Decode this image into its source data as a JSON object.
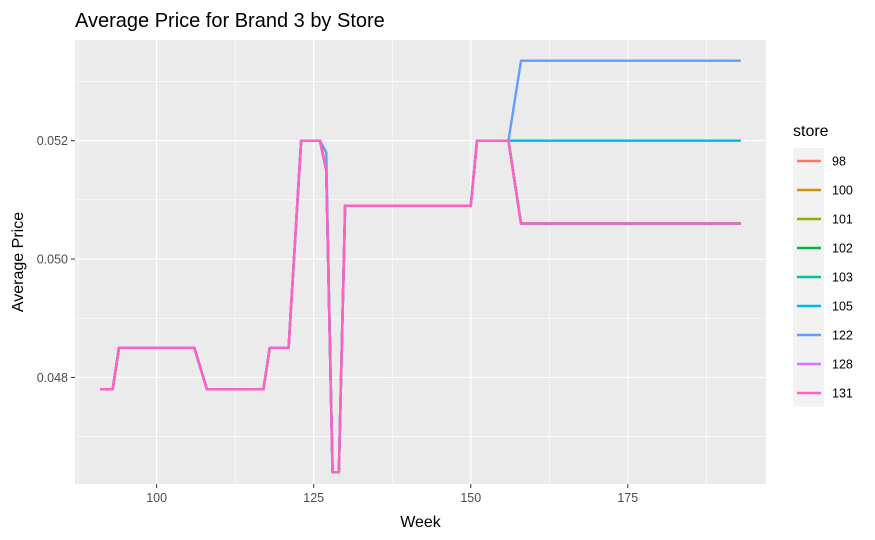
{
  "chart_data": {
    "type": "line",
    "title": "Average Price for Brand 3 by Store",
    "xlabel": "Week",
    "ylabel": "Average Price",
    "xlim": [
      87,
      197
    ],
    "ylim": [
      0.0462,
      0.0537
    ],
    "x_ticks": [
      {
        "value": 100,
        "label": "100"
      },
      {
        "value": 125,
        "label": "125"
      },
      {
        "value": 150,
        "label": "150"
      },
      {
        "value": 175,
        "label": "175"
      }
    ],
    "y_ticks": [
      {
        "value": 0.048,
        "label": "0.048"
      },
      {
        "value": 0.05,
        "label": "0.050"
      },
      {
        "value": 0.052,
        "label": "0.052"
      }
    ],
    "grid": true,
    "legend": {
      "title": "store",
      "position": "right"
    },
    "series": [
      {
        "name": "98",
        "color": "#F8766D",
        "points": [
          [
            91,
            0.0478
          ],
          [
            93,
            0.0478
          ],
          [
            94,
            0.0485
          ],
          [
            106,
            0.0485
          ],
          [
            108,
            0.0478
          ],
          [
            117,
            0.0478
          ],
          [
            118,
            0.0485
          ],
          [
            121,
            0.0485
          ],
          [
            123,
            0.052
          ],
          [
            126,
            0.052
          ],
          [
            127,
            0.0515
          ],
          [
            128,
            0.0464
          ],
          [
            129,
            0.0464
          ],
          [
            130,
            0.0509
          ],
          [
            150,
            0.0509
          ],
          [
            151,
            0.052
          ],
          [
            156,
            0.052
          ],
          [
            158,
            0.0506
          ],
          [
            193,
            0.0506
          ]
        ]
      },
      {
        "name": "100",
        "color": "#D39200",
        "points": [
          [
            91,
            0.0478
          ],
          [
            93,
            0.0478
          ],
          [
            94,
            0.0485
          ],
          [
            106,
            0.0485
          ],
          [
            108,
            0.0478
          ],
          [
            117,
            0.0478
          ],
          [
            118,
            0.0485
          ],
          [
            121,
            0.0485
          ],
          [
            123,
            0.052
          ],
          [
            126,
            0.052
          ],
          [
            127,
            0.0515
          ],
          [
            128,
            0.0464
          ],
          [
            129,
            0.0464
          ],
          [
            130,
            0.0509
          ],
          [
            150,
            0.0509
          ],
          [
            151,
            0.052
          ],
          [
            156,
            0.052
          ],
          [
            158,
            0.0506
          ],
          [
            193,
            0.0506
          ]
        ]
      },
      {
        "name": "101",
        "color": "#93AA00",
        "points": [
          [
            91,
            0.0478
          ],
          [
            93,
            0.0478
          ],
          [
            94,
            0.0485
          ],
          [
            106,
            0.0485
          ],
          [
            108,
            0.0478
          ],
          [
            117,
            0.0478
          ],
          [
            118,
            0.0485
          ],
          [
            121,
            0.0485
          ],
          [
            123,
            0.052
          ],
          [
            126,
            0.052
          ],
          [
            127,
            0.0515
          ],
          [
            128,
            0.0464
          ],
          [
            129,
            0.0464
          ],
          [
            130,
            0.0509
          ],
          [
            150,
            0.0509
          ],
          [
            151,
            0.052
          ],
          [
            156,
            0.052
          ],
          [
            158,
            0.0506
          ],
          [
            193,
            0.0506
          ]
        ]
      },
      {
        "name": "102",
        "color": "#00BA38",
        "points": [
          [
            91,
            0.0478
          ],
          [
            93,
            0.0478
          ],
          [
            94,
            0.0485
          ],
          [
            106,
            0.0485
          ],
          [
            108,
            0.0478
          ],
          [
            117,
            0.0478
          ],
          [
            118,
            0.0485
          ],
          [
            121,
            0.0485
          ],
          [
            123,
            0.052
          ],
          [
            126,
            0.052
          ],
          [
            127,
            0.0515
          ],
          [
            128,
            0.0464
          ],
          [
            129,
            0.0464
          ],
          [
            130,
            0.0509
          ],
          [
            150,
            0.0509
          ],
          [
            151,
            0.052
          ],
          [
            156,
            0.052
          ],
          [
            158,
            0.0506
          ],
          [
            193,
            0.0506
          ]
        ]
      },
      {
        "name": "103",
        "color": "#00C19F",
        "points": [
          [
            91,
            0.0478
          ],
          [
            93,
            0.0478
          ],
          [
            94,
            0.0485
          ],
          [
            106,
            0.0485
          ],
          [
            108,
            0.0478
          ],
          [
            117,
            0.0478
          ],
          [
            118,
            0.0485
          ],
          [
            121,
            0.0485
          ],
          [
            123,
            0.052
          ],
          [
            126,
            0.052
          ],
          [
            127,
            0.0515
          ],
          [
            128,
            0.0464
          ],
          [
            129,
            0.0464
          ],
          [
            130,
            0.0509
          ],
          [
            150,
            0.0509
          ],
          [
            151,
            0.052
          ],
          [
            156,
            0.052
          ],
          [
            158,
            0.0506
          ],
          [
            193,
            0.0506
          ]
        ]
      },
      {
        "name": "105",
        "color": "#00B9E3",
        "points": [
          [
            91,
            0.0478
          ],
          [
            93,
            0.0478
          ],
          [
            94,
            0.0485
          ],
          [
            106,
            0.0485
          ],
          [
            108,
            0.0478
          ],
          [
            117,
            0.0478
          ],
          [
            118,
            0.0485
          ],
          [
            121,
            0.0485
          ],
          [
            123,
            0.052
          ],
          [
            126,
            0.052
          ],
          [
            127,
            0.0515
          ],
          [
            128,
            0.0464
          ],
          [
            129,
            0.0464
          ],
          [
            130,
            0.0509
          ],
          [
            150,
            0.0509
          ],
          [
            151,
            0.052
          ],
          [
            156,
            0.052
          ],
          [
            193,
            0.052
          ]
        ]
      },
      {
        "name": "122",
        "color": "#619CFF",
        "points": [
          [
            91,
            0.0478
          ],
          [
            93,
            0.0478
          ],
          [
            94,
            0.0485
          ],
          [
            106,
            0.0485
          ],
          [
            108,
            0.0478
          ],
          [
            117,
            0.0478
          ],
          [
            118,
            0.0485
          ],
          [
            121,
            0.0485
          ],
          [
            123,
            0.052
          ],
          [
            126,
            0.052
          ],
          [
            127,
            0.0518
          ],
          [
            128,
            0.0464
          ],
          [
            129,
            0.0464
          ],
          [
            130,
            0.0509
          ],
          [
            150,
            0.0509
          ],
          [
            151,
            0.052
          ],
          [
            156,
            0.052
          ],
          [
            158,
            0.05335
          ],
          [
            193,
            0.05335
          ]
        ]
      },
      {
        "name": "128",
        "color": "#DB72FB",
        "points": [
          [
            91,
            0.0478
          ],
          [
            93,
            0.0478
          ],
          [
            94,
            0.0485
          ],
          [
            106,
            0.0485
          ],
          [
            108,
            0.0478
          ],
          [
            117,
            0.0478
          ],
          [
            118,
            0.0485
          ],
          [
            121,
            0.0485
          ],
          [
            123,
            0.052
          ],
          [
            126,
            0.052
          ],
          [
            127,
            0.0515
          ],
          [
            128,
            0.0464
          ],
          [
            129,
            0.0464
          ],
          [
            130,
            0.0509
          ],
          [
            150,
            0.0509
          ],
          [
            151,
            0.052
          ],
          [
            156,
            0.052
          ],
          [
            158,
            0.0506
          ],
          [
            193,
            0.0506
          ]
        ]
      },
      {
        "name": "131",
        "color": "#FF61C3",
        "points": [
          [
            91,
            0.0478
          ],
          [
            93,
            0.0478
          ],
          [
            94,
            0.0485
          ],
          [
            106,
            0.0485
          ],
          [
            108,
            0.0478
          ],
          [
            117,
            0.0478
          ],
          [
            118,
            0.0485
          ],
          [
            121,
            0.0485
          ],
          [
            123,
            0.052
          ],
          [
            126,
            0.052
          ],
          [
            127,
            0.0515
          ],
          [
            128,
            0.0464
          ],
          [
            129,
            0.0464
          ],
          [
            130,
            0.0509
          ],
          [
            150,
            0.0509
          ],
          [
            151,
            0.052
          ],
          [
            156,
            0.052
          ],
          [
            158,
            0.0506
          ],
          [
            193,
            0.0506
          ]
        ]
      }
    ]
  }
}
